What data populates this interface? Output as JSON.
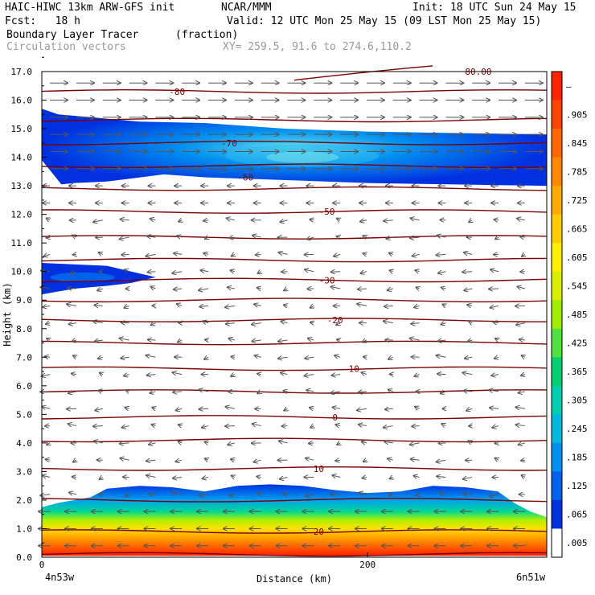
{
  "header": {
    "model": "HAIC-HIWC 13km ARW-GFS init",
    "org": "NCAR/MMM",
    "init": "Init: 18 UTC Sun 24 May 15",
    "fcst": "Fcst:   18 h",
    "valid": "Valid: 12 UTC Mon 25 May 15 (09 LST Mon 25 May 15)",
    "field": "Boundary Layer Tracer",
    "units": "(fraction)",
    "vectors": "Circulation vectors",
    "xy": "XY= 259.5, 91.6 to 274.6,110.2"
  },
  "chart_data": {
    "type": "heatmap",
    "ylabel": "Height (km)",
    "xlabel": "Distance (km)",
    "xlim": [
      0,
      310
    ],
    "ylim": [
      0,
      17
    ],
    "y_ticks": [
      "0.0",
      "1.0",
      "2.0",
      "3.0",
      "4.0",
      "5.0",
      "6.0",
      "7.0",
      "8.0",
      "9.0",
      "10.0",
      "11.0",
      "12.0",
      "13.0",
      "14.0",
      "15.0",
      "16.0",
      "17.0"
    ],
    "x_ticks": [
      {
        "value": 0,
        "label": "0"
      },
      {
        "value": 200,
        "label": "200"
      }
    ],
    "x_end_labels": {
      "left": "4n53w",
      "right": "6n51w"
    },
    "colorbar_labels": [
      "–",
      ".905",
      ".845",
      ".785",
      ".725",
      ".665",
      ".605",
      ".545",
      ".485",
      ".425",
      ".365",
      ".305",
      ".245",
      ".185",
      ".125",
      ".065",
      ".005"
    ],
    "colorbar_colors": [
      "#ff2200",
      "#ff4400",
      "#ff6600",
      "#ff8800",
      "#ffaa00",
      "#ffcc00",
      "#ffee00",
      "#d8f000",
      "#a0ee00",
      "#50e040",
      "#00d070",
      "#00d0b0",
      "#00b8e0",
      "#0090f0",
      "#0060f0",
      "#0030e0",
      "#ffffff"
    ],
    "temperature_contours": [
      {
        "label": "20",
        "y": 0.9,
        "x": 170
      },
      {
        "label": "10",
        "y": 3.1,
        "x": 170
      },
      {
        "label": "0",
        "y": 4.9,
        "x": 180
      },
      {
        "label": "-10",
        "y": 6.6,
        "x": 190
      },
      {
        "label": "-20",
        "y": 8.3,
        "x": 180
      },
      {
        "label": "-30",
        "y": 9.7,
        "x": 175
      },
      {
        "label": "-50",
        "y": 12.1,
        "x": 175
      },
      {
        "label": "-60",
        "y": 13.3,
        "x": 125
      },
      {
        "label": "-70",
        "y": 14.5,
        "x": 115
      },
      {
        "label": "-80",
        "y": 16.3,
        "x": 83
      },
      {
        "label": "80.00",
        "y": 17.0,
        "x": 268
      }
    ],
    "contour_levels_km": [
      0.1,
      0.9,
      2.0,
      3.1,
      4.1,
      4.9,
      5.8,
      6.6,
      7.5,
      8.3,
      9.0,
      9.7,
      10.4,
      11.2,
      12.1,
      12.9,
      13.7,
      14.5,
      15.3,
      16.3
    ],
    "vectors": "Circulation vectors"
  }
}
